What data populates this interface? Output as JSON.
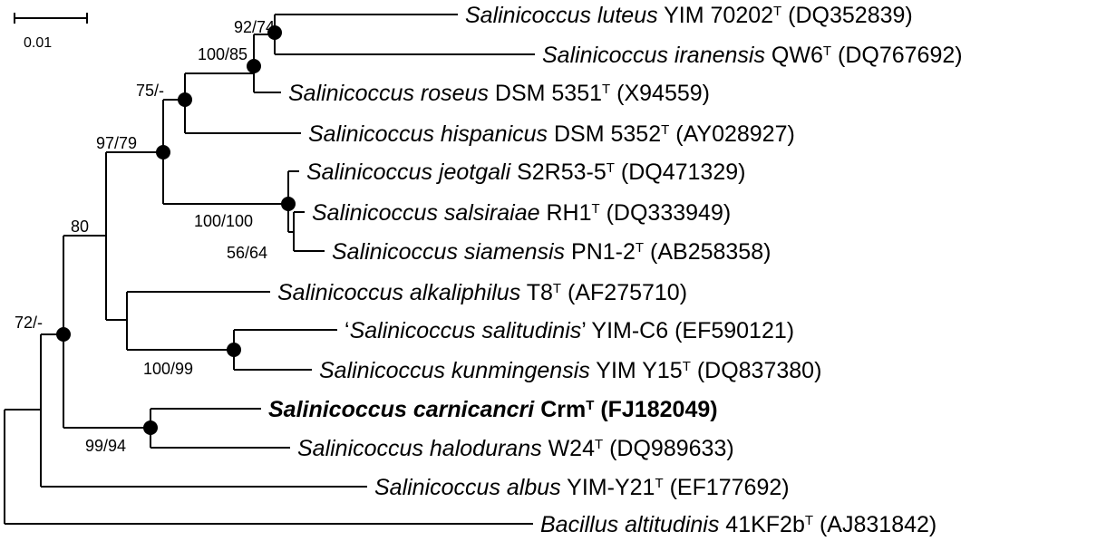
{
  "scale_bar": {
    "label": "0.01"
  },
  "supports": {
    "n_root_in": "72/-",
    "n_top": "80",
    "n_a": "97/79",
    "n_b": "75/-",
    "n_c": "100/85",
    "n_d": "92/74",
    "n_e": "100/100",
    "n_f": "56/64",
    "n_h": "100/99",
    "n_i": "99/94"
  },
  "taxa": [
    {
      "id": "luteus",
      "genus": "Salinicoccus",
      "species": "luteus",
      "strain": "YIM 70202",
      "type_strain": true,
      "accession": "(DQ352839)",
      "bold": false
    },
    {
      "id": "iranensis",
      "genus": "Salinicoccus",
      "species": "iranensis",
      "strain": "QW6",
      "type_strain": true,
      "accession": "(DQ767692)",
      "bold": false
    },
    {
      "id": "roseus",
      "genus": "Salinicoccus",
      "species": "roseus",
      "strain": "DSM 5351",
      "type_strain": true,
      "accession": "(X94559)",
      "bold": false
    },
    {
      "id": "hispanicus",
      "genus": "Salinicoccus",
      "species": "hispanicus",
      "strain": "DSM 5352",
      "type_strain": true,
      "accession": "(AY028927)",
      "bold": false
    },
    {
      "id": "jeotgali",
      "genus": "Salinicoccus",
      "species": "jeotgali",
      "strain": "S2R53-5",
      "type_strain": true,
      "accession": "(DQ471329)",
      "bold": false
    },
    {
      "id": "salsiraiae",
      "genus": "Salinicoccus",
      "species": "salsiraiae",
      "strain": "RH1",
      "type_strain": true,
      "accession": "(DQ333949)",
      "bold": false
    },
    {
      "id": "siamensis",
      "genus": "Salinicoccus",
      "species": "siamensis",
      "strain": "PN1-2",
      "type_strain": true,
      "accession": "(AB258358)",
      "bold": false
    },
    {
      "id": "alkaliphilus",
      "genus": "Salinicoccus",
      "species": "alkaliphilus",
      "strain": "T8",
      "type_strain": true,
      "accession": "(AF275710)",
      "bold": false
    },
    {
      "id": "salitudinis",
      "genus": "Salinicoccus",
      "species": "salitudinis",
      "strain": "YIM-C6",
      "type_strain": false,
      "accession": "(EF590121)",
      "bold": false,
      "quoted": true
    },
    {
      "id": "kunmingensis",
      "genus": "Salinicoccus",
      "species": "kunmingensis",
      "strain": "YIM Y15",
      "type_strain": true,
      "accession": "(DQ837380)",
      "bold": false
    },
    {
      "id": "carnicancri",
      "genus": "Salinicoccus",
      "species": "carnicancri",
      "strain": "Crm",
      "type_strain": true,
      "accession": "(FJ182049)",
      "bold": true
    },
    {
      "id": "halodurans",
      "genus": "Salinicoccus",
      "species": "halodurans",
      "strain": "W24",
      "type_strain": true,
      "accession": "(DQ989633)",
      "bold": false
    },
    {
      "id": "albus",
      "genus": "Salinicoccus",
      "species": "albus",
      "strain": "YIM-Y21",
      "type_strain": true,
      "accession": "(EF177692)",
      "bold": false
    },
    {
      "id": "bacillus",
      "genus": "Bacillus",
      "species": "altitudinis",
      "strain": "41KF2b",
      "type_strain": true,
      "accession": "(AJ831842)",
      "bold": false
    }
  ]
}
